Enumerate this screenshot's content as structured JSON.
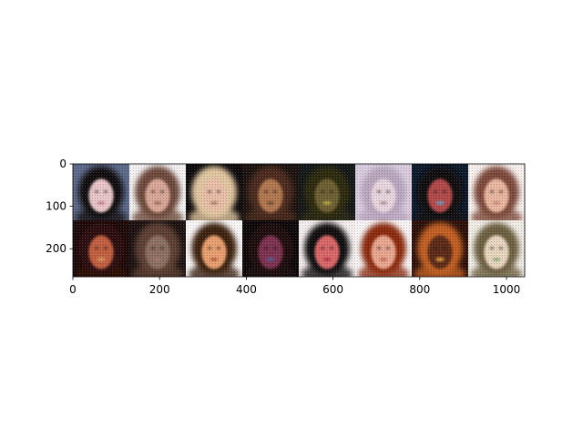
{
  "figure": {
    "description_grid": {
      "rows": 2,
      "cols": 8
    },
    "x_axis": {
      "ticks": [
        0,
        200,
        400,
        600,
        800,
        1000
      ],
      "range": [
        0,
        1042
      ]
    },
    "y_axis": {
      "ticks": [
        0,
        100,
        200
      ],
      "range": [
        0,
        266
      ]
    },
    "tiles": [
      {
        "bg": "#5a6a8a",
        "hair": "#111111",
        "skin": "#e8c8c8",
        "accent": "#c06080"
      },
      {
        "bg": "#f4f4f4",
        "hair": "#6a4a3a",
        "skin": "#d8a898",
        "accent": "#8a5a4a"
      },
      {
        "bg": "#0a0a0a",
        "hair": "#e0c8a0",
        "skin": "#e8c0a8",
        "accent": "#9a7050"
      },
      {
        "bg": "#1a1410",
        "hair": "#4a2a1a",
        "skin": "#b07850",
        "accent": "#5a3a20"
      },
      {
        "bg": "#101818",
        "hair": "#2a2a10",
        "skin": "#6a6030",
        "accent": "#c0b040"
      },
      {
        "bg": "#d8d0e0",
        "hair": "#b8a8c0",
        "skin": "#e8d8e0",
        "accent": "#a08090"
      },
      {
        "bg": "#0a1a2a",
        "hair": "#0a0a0a",
        "skin": "#b04848",
        "accent": "#40a0c0"
      },
      {
        "bg": "#f8f4f0",
        "hair": "#7a4a3a",
        "skin": "#e8b8a0",
        "accent": "#c08070"
      },
      {
        "bg": "#1a0a08",
        "hair": "#2a0a08",
        "skin": "#c06040",
        "accent": "#e0a060"
      },
      {
        "bg": "#1a1210",
        "hair": "#5a4030",
        "skin": "#8a7060",
        "accent": "#a08070"
      },
      {
        "bg": "#fafafa",
        "hair": "#3a2010",
        "skin": "#e8a070",
        "accent": "#a04020"
      },
      {
        "bg": "#0a0808",
        "hair": "#1a1010",
        "skin": "#7a3050",
        "accent": "#4060a0"
      },
      {
        "bg": "#f4f0f0",
        "hair": "#0a0a0a",
        "skin": "#d86868",
        "accent": "#a02040"
      },
      {
        "bg": "#f8f8f8",
        "hair": "#8a2a10",
        "skin": "#e8a890",
        "accent": "#c05040"
      },
      {
        "bg": "#2a1008",
        "hair": "#c06020",
        "skin": "#5a2a18",
        "accent": "#e8a040"
      },
      {
        "bg": "#f0f0e8",
        "hair": "#6a6040",
        "skin": "#e8d8c0",
        "accent": "#60a060"
      }
    ]
  }
}
